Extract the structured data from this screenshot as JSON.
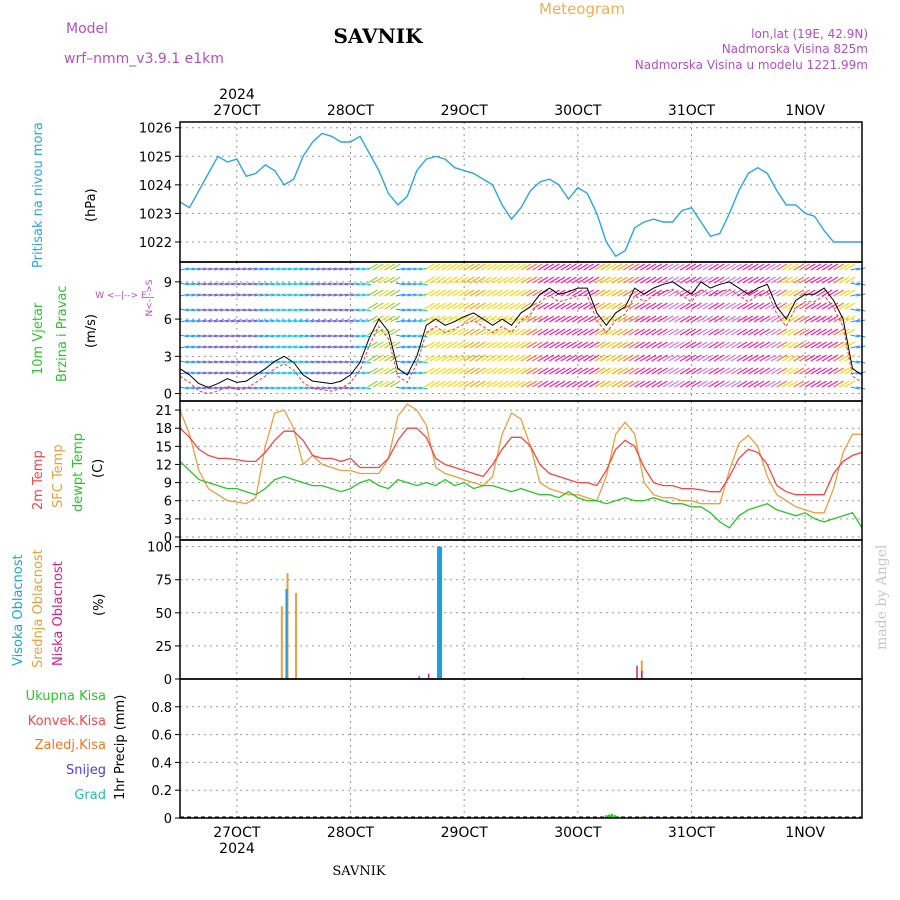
{
  "header": {
    "model_label": "Model",
    "model_name": "wrf–nmm_v3.9.1  e1km",
    "station": "SAVNIK",
    "product": "Meteogram",
    "coords": "lon,lat (19E, 42.9N)",
    "elevation": "Nadmorska Visina 825m",
    "model_elevation": "Nadmorska Visina u modelu 1221.99m",
    "year": "2024",
    "watermark": "made by Angel",
    "footer_station": "SAVNIK"
  },
  "colors": {
    "pressure": "#2aa6e0",
    "temp2m": "#f04848",
    "sfc": "#e8a040",
    "dewpt": "#2cc32c",
    "high_cloud": "#1ea0e0",
    "mid_cloud": "#e8a040",
    "low_cloud": "#d0208a",
    "precip_total": "#2cc32c",
    "precip_conv": "#f04848",
    "precip_frozen": "#f07820",
    "snow": "#5040d0",
    "hail": "#20c0b0",
    "title_purple": "#b050c0",
    "title_orange": "#f0b050"
  },
  "panel_labels": {
    "pressure": {
      "name": "Pritisak na nivou mora",
      "unit": "(hPa)"
    },
    "wind": {
      "line1": "10m Vjetar",
      "line2": "Brzina i Pravac",
      "unit": "(m/s)",
      "compass": "W <--|--> E",
      "compass_v": "N<-|->S"
    },
    "temp": {
      "l1": "2m Temp",
      "l2": "SFC Temp",
      "l3": "dewpt Temp",
      "unit": "(C)"
    },
    "cloud": {
      "l1": "Visoka Oblacnost",
      "l2": "Srednja Oblacnost",
      "l3": "Niska Oblacnost",
      "unit": "(%)"
    },
    "precip": {
      "l1": "Ukupna Kisa",
      "l2": "Konvek.Kisa",
      "l3": "Zaledj.Kisa",
      "l4": "Snijeg",
      "l5": "Grad",
      "unit": "1hr Precip (mm)"
    }
  },
  "chart_data": {
    "type": "line",
    "x_unit": "hours since forecast start (27OCT 00 UTC = 12)",
    "day_labels": [
      "27OCT",
      "28OCT",
      "29OCT",
      "30OCT",
      "31OCT",
      "1NOV"
    ],
    "day_hours": [
      12,
      36,
      60,
      84,
      108,
      132
    ],
    "x_range": [
      0,
      144
    ],
    "pressure": {
      "ylim": [
        1021.3,
        1026.2
      ],
      "yticks": [
        "1026",
        "1025",
        "1024",
        "1023",
        "1022"
      ],
      "ytick_values": [
        1026,
        1025,
        1024,
        1023,
        1022
      ],
      "x": [
        0,
        2,
        4,
        6,
        8,
        10,
        12,
        14,
        16,
        18,
        20,
        22,
        24,
        26,
        28,
        30,
        32,
        34,
        36,
        38,
        40,
        42,
        44,
        46,
        48,
        50,
        52,
        54,
        56,
        58,
        60,
        62,
        64,
        66,
        68,
        70,
        72,
        74,
        76,
        78,
        80,
        82,
        84,
        86,
        88,
        90,
        92,
        94,
        96,
        98,
        100,
        102,
        104,
        106,
        108,
        110,
        112,
        114,
        116,
        118,
        120,
        122,
        124,
        126,
        128,
        130,
        132,
        134,
        136,
        138,
        140,
        142,
        144
      ],
      "values": [
        1023.4,
        1023.2,
        1023.8,
        1024.4,
        1025.0,
        1024.8,
        1024.9,
        1024.3,
        1024.4,
        1024.7,
        1024.5,
        1024.0,
        1024.2,
        1025.0,
        1025.5,
        1025.8,
        1025.7,
        1025.5,
        1025.5,
        1025.7,
        1025.1,
        1024.5,
        1023.7,
        1023.3,
        1023.6,
        1024.5,
        1024.9,
        1025.0,
        1024.9,
        1024.6,
        1024.5,
        1024.4,
        1024.2,
        1024.0,
        1023.3,
        1022.8,
        1023.2,
        1023.8,
        1024.1,
        1024.2,
        1024.0,
        1023.5,
        1023.9,
        1023.7,
        1023.0,
        1022.0,
        1021.5,
        1021.7,
        1022.5,
        1022.7,
        1022.8,
        1022.7,
        1022.7,
        1023.1,
        1023.2,
        1022.7,
        1022.2,
        1022.3,
        1023.0,
        1023.8,
        1024.4,
        1024.6,
        1024.4,
        1023.8,
        1023.3,
        1023.3,
        1023.0,
        1022.9,
        1022.4,
        1022.0,
        1022.0,
        1022.0,
        1022.0
      ]
    },
    "wind": {
      "ylim": [
        -0.6,
        10.6
      ],
      "yticks": [
        "9",
        "6",
        "3",
        "0"
      ],
      "ytick_values": [
        9,
        6,
        3,
        0
      ],
      "x": [
        0,
        2,
        4,
        6,
        8,
        10,
        12,
        14,
        16,
        18,
        20,
        22,
        24,
        26,
        28,
        30,
        32,
        34,
        36,
        38,
        40,
        42,
        44,
        46,
        48,
        50,
        52,
        54,
        56,
        58,
        60,
        62,
        64,
        66,
        68,
        70,
        72,
        74,
        76,
        78,
        80,
        82,
        84,
        86,
        88,
        90,
        92,
        94,
        96,
        98,
        100,
        102,
        104,
        106,
        108,
        110,
        112,
        114,
        116,
        118,
        120,
        122,
        124,
        126,
        128,
        130,
        132,
        134,
        136,
        138,
        140,
        142,
        144
      ],
      "speed": [
        2.0,
        1.5,
        0.8,
        0.5,
        0.8,
        1.2,
        0.9,
        1.0,
        1.5,
        2.0,
        2.6,
        3.0,
        2.5,
        1.5,
        1.0,
        0.9,
        0.8,
        1.0,
        1.5,
        2.5,
        4.5,
        6.0,
        5.0,
        2.0,
        1.5,
        3.0,
        5.5,
        6.0,
        5.5,
        5.8,
        6.2,
        6.5,
        6.0,
        5.5,
        6.0,
        5.5,
        6.5,
        7.0,
        8.0,
        8.5,
        8.0,
        8.2,
        8.5,
        8.5,
        6.5,
        5.5,
        6.5,
        7.0,
        8.5,
        8.0,
        8.5,
        8.8,
        9.0,
        8.5,
        8.0,
        9.0,
        8.5,
        8.8,
        9.0,
        8.5,
        8.0,
        8.5,
        8.8,
        7.0,
        6.0,
        7.5,
        8.0,
        8.0,
        8.5,
        7.5,
        6.0,
        2.0,
        1.5
      ]
    },
    "temperature": {
      "ylim": [
        -0.5,
        22.5
      ],
      "yticks": [
        "21",
        "18",
        "15",
        "12",
        "9",
        "6",
        "3",
        "0"
      ],
      "ytick_values": [
        21,
        18,
        15,
        12,
        9,
        6,
        3,
        0
      ],
      "x": [
        0,
        2,
        4,
        6,
        8,
        10,
        12,
        14,
        16,
        18,
        20,
        22,
        24,
        26,
        28,
        30,
        32,
        34,
        36,
        38,
        40,
        42,
        44,
        46,
        48,
        50,
        52,
        54,
        56,
        58,
        60,
        62,
        64,
        66,
        68,
        70,
        72,
        74,
        76,
        78,
        80,
        82,
        84,
        86,
        88,
        90,
        92,
        94,
        96,
        98,
        100,
        102,
        104,
        106,
        108,
        110,
        112,
        114,
        116,
        118,
        120,
        122,
        124,
        126,
        128,
        130,
        132,
        134,
        136,
        138,
        140,
        142,
        144
      ],
      "t2m": [
        18.0,
        16.5,
        14.5,
        13.5,
        13.0,
        13.0,
        12.8,
        12.5,
        12.5,
        14.0,
        16.0,
        17.5,
        17.5,
        16.0,
        13.5,
        13.0,
        13.0,
        12.5,
        13.0,
        11.5,
        11.5,
        11.5,
        13.0,
        16.0,
        18.0,
        18.0,
        16.5,
        13.0,
        12.0,
        11.5,
        11.0,
        10.5,
        10.0,
        12.0,
        14.5,
        16.5,
        16.5,
        15.0,
        12.0,
        10.5,
        10.0,
        9.5,
        9.0,
        9.0,
        8.5,
        11.0,
        14.5,
        16.0,
        15.0,
        11.5,
        9.0,
        8.5,
        8.5,
        8.0,
        8.0,
        7.8,
        7.5,
        7.5,
        10.0,
        13.0,
        14.5,
        14.0,
        12.0,
        8.5,
        7.5,
        7.0,
        7.0,
        7.0,
        7.0,
        10.5,
        12.5,
        13.5,
        14.0
      ],
      "sfc": [
        21.0,
        17.0,
        11.0,
        8.0,
        7.0,
        6.0,
        5.8,
        5.5,
        6.5,
        15.0,
        20.5,
        21.0,
        18.0,
        12.0,
        13.5,
        12.0,
        11.5,
        11.0,
        11.0,
        10.5,
        10.5,
        10.5,
        13.0,
        20.0,
        22.0,
        21.0,
        18.5,
        11.5,
        10.5,
        10.0,
        9.5,
        9.0,
        8.5,
        10.0,
        17.0,
        20.5,
        19.5,
        15.0,
        9.0,
        8.0,
        7.5,
        7.0,
        7.0,
        6.5,
        6.0,
        10.0,
        17.0,
        19.0,
        17.0,
        9.0,
        7.0,
        6.5,
        6.5,
        6.0,
        6.0,
        5.5,
        5.5,
        5.5,
        11.0,
        15.5,
        16.8,
        15.0,
        10.0,
        7.0,
        6.0,
        5.0,
        4.5,
        4.0,
        4.0,
        8.0,
        14.0,
        17.0,
        17.0
      ],
      "dewpt": [
        12.5,
        11.0,
        9.5,
        9.0,
        8.5,
        8.0,
        8.0,
        7.5,
        7.0,
        8.0,
        9.5,
        10.0,
        9.5,
        9.0,
        8.5,
        8.5,
        8.0,
        7.5,
        8.0,
        9.0,
        9.5,
        8.5,
        8.0,
        9.5,
        9.0,
        8.5,
        9.0,
        8.5,
        9.5,
        8.5,
        9.0,
        8.0,
        8.5,
        8.5,
        8.0,
        7.5,
        8.0,
        7.5,
        7.0,
        7.0,
        6.5,
        7.5,
        6.5,
        6.0,
        6.0,
        5.5,
        6.0,
        6.5,
        6.0,
        6.0,
        6.5,
        6.0,
        5.5,
        5.5,
        5.0,
        5.0,
        4.0,
        2.5,
        1.5,
        3.5,
        4.5,
        5.0,
        5.5,
        4.5,
        4.0,
        3.5,
        4.0,
        3.0,
        2.5,
        3.0,
        3.5,
        4.0,
        1.5
      ]
    },
    "cloud": {
      "ylim": [
        0,
        105
      ],
      "yticks": [
        "100",
        "75",
        "50",
        "25",
        "0"
      ],
      "ytick_values": [
        100,
        75,
        50,
        25,
        0
      ],
      "high": [
        [
          22.5,
          68
        ],
        [
          54.5,
          100
        ],
        [
          54.8,
          100
        ],
        [
          55.1,
          100
        ]
      ],
      "mid": [
        [
          21.5,
          55
        ],
        [
          22.7,
          80
        ],
        [
          24.5,
          65
        ],
        [
          97.5,
          14
        ]
      ],
      "low": [
        [
          50.5,
          2
        ],
        [
          52.5,
          4
        ],
        [
          72.5,
          1
        ],
        [
          96.5,
          10
        ],
        [
          97.5,
          6
        ]
      ]
    },
    "precip": {
      "ylim": [
        0,
        1.0
      ],
      "yticks": [
        "0.8",
        "0.6",
        "0.4",
        "0.2",
        "0"
      ],
      "ytick_values": [
        0.8,
        0.6,
        0.4,
        0.2,
        0
      ],
      "total": [
        [
          90.0,
          0.02
        ],
        [
          90.6,
          0.025
        ],
        [
          91.2,
          0.03
        ],
        [
          91.8,
          0.02
        ],
        [
          92.4,
          0.015
        ],
        [
          97.5,
          0.01
        ]
      ]
    }
  }
}
